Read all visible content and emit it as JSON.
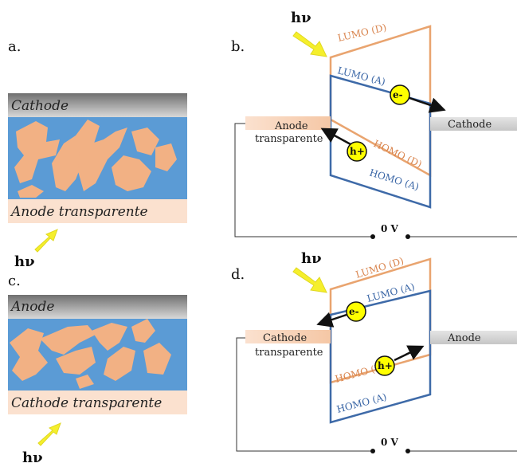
{
  "panels": {
    "a": {
      "letter": "a.",
      "top_layer": "Cathode",
      "bottom_layer": "Anode transparente",
      "light": "hν"
    },
    "b": {
      "letter": "b.",
      "light": "hν",
      "lumo_d": "LUMO (D)",
      "lumo_a": "LUMO (A)",
      "homo_d": "HOMO (D)",
      "homo_a": "HOMO (A)",
      "electron": "e-",
      "hole": "h+",
      "left_electrode": [
        "Anode",
        "transparente"
      ],
      "right_electrode": "Cathode",
      "voltage": "0 V"
    },
    "c": {
      "letter": "c.",
      "top_layer": "Anode",
      "bottom_layer": "Cathode transparente",
      "light": "hν"
    },
    "d": {
      "letter": "d.",
      "light": "hν",
      "lumo_d": "LUMO (D)",
      "lumo_a": "LUMO (A)",
      "homo_d": "HOMO (D)",
      "homo_a": "HOMO (A)",
      "electron": "e-",
      "hole": "h+",
      "left_electrode": [
        "Cathode",
        "transparente"
      ],
      "right_electrode": "Anode",
      "voltage": "0 V"
    }
  },
  "colors": {
    "donor": "#f2b184",
    "acceptor_blue": "#5b9bd5",
    "orange_line": "#e9a46f",
    "blue_line": "#3e6aa8",
    "charge": "#ffff00",
    "arrow_yellow": "#f5ef2c"
  }
}
